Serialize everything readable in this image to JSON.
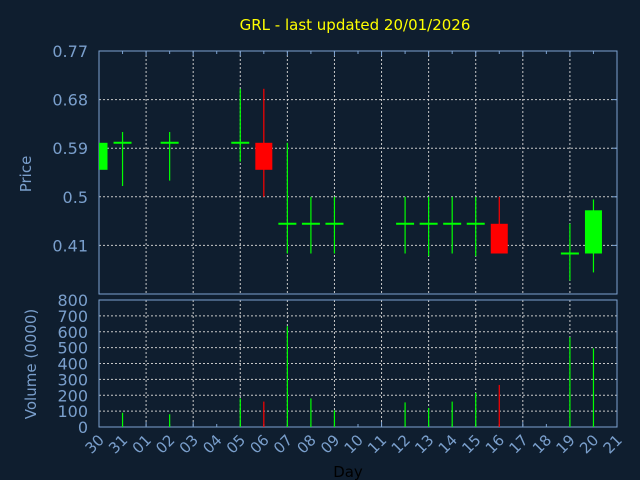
{
  "chart_data": [
    {
      "type": "candlestick",
      "title": "GRL - last updated 20/01/2026",
      "ylabel": "Price",
      "ylim": [
        0.32,
        0.77
      ],
      "yticks": [
        "0.77",
        "0.68",
        "0.59",
        "0.5",
        "0.41"
      ],
      "ytick_values": [
        0.77,
        0.68,
        0.59,
        0.5,
        0.41
      ],
      "grid": true,
      "candles": [
        {
          "day": "30",
          "open": 0.55,
          "high": 0.6,
          "low": 0.55,
          "close": 0.6
        },
        {
          "day": "31",
          "open": 0.6,
          "high": 0.62,
          "low": 0.52,
          "close": 0.6
        },
        {
          "day": "02",
          "open": 0.6,
          "high": 0.62,
          "low": 0.53,
          "close": 0.6
        },
        {
          "day": "05",
          "open": 0.6,
          "high": 0.7,
          "low": 0.565,
          "close": 0.6
        },
        {
          "day": "06",
          "open": 0.6,
          "high": 0.7,
          "low": 0.5,
          "close": 0.55
        },
        {
          "day": "07",
          "open": 0.45,
          "high": 0.6,
          "low": 0.395,
          "close": 0.45
        },
        {
          "day": "08",
          "open": 0.45,
          "high": 0.5,
          "low": 0.395,
          "close": 0.45
        },
        {
          "day": "09",
          "open": 0.45,
          "high": 0.5,
          "low": 0.395,
          "close": 0.45
        },
        {
          "day": "12",
          "open": 0.45,
          "high": 0.5,
          "low": 0.395,
          "close": 0.45
        },
        {
          "day": "13",
          "open": 0.45,
          "high": 0.5,
          "low": 0.39,
          "close": 0.45
        },
        {
          "day": "14",
          "open": 0.45,
          "high": 0.5,
          "low": 0.395,
          "close": 0.45
        },
        {
          "day": "15",
          "open": 0.45,
          "high": 0.5,
          "low": 0.39,
          "close": 0.45
        },
        {
          "day": "16",
          "open": 0.45,
          "high": 0.5,
          "low": 0.395,
          "close": 0.395
        },
        {
          "day": "19",
          "open": 0.395,
          "high": 0.45,
          "low": 0.345,
          "close": 0.395
        },
        {
          "day": "20",
          "open": 0.395,
          "high": 0.495,
          "low": 0.36,
          "close": 0.475
        }
      ]
    },
    {
      "type": "bar",
      "ylabel": "Volume (0000)",
      "xlabel": "Day",
      "ylim": [
        0,
        800
      ],
      "yticks": [
        "800",
        "700",
        "600",
        "500",
        "400",
        "300",
        "200",
        "100",
        "0"
      ],
      "ytick_values": [
        800,
        700,
        600,
        500,
        400,
        300,
        200,
        100,
        0
      ],
      "xticks": [
        "30",
        "31",
        "01",
        "02",
        "03",
        "04",
        "05",
        "06",
        "07",
        "08",
        "09",
        "10",
        "11",
        "12",
        "13",
        "14",
        "15",
        "16",
        "17",
        "18",
        "19",
        "20",
        "21"
      ],
      "grid": true,
      "bars": [
        {
          "day": "31",
          "value": 90,
          "direction": "up"
        },
        {
          "day": "02",
          "value": 80,
          "direction": "up"
        },
        {
          "day": "05",
          "value": 180,
          "direction": "up"
        },
        {
          "day": "06",
          "value": 160,
          "direction": "down"
        },
        {
          "day": "07",
          "value": 635,
          "direction": "up"
        },
        {
          "day": "08",
          "value": 180,
          "direction": "up"
        },
        {
          "day": "09",
          "value": 105,
          "direction": "up"
        },
        {
          "day": "12",
          "value": 155,
          "direction": "up"
        },
        {
          "day": "13",
          "value": 120,
          "direction": "up"
        },
        {
          "day": "14",
          "value": 160,
          "direction": "up"
        },
        {
          "day": "15",
          "value": 215,
          "direction": "up"
        },
        {
          "day": "16",
          "value": 265,
          "direction": "down"
        },
        {
          "day": "19",
          "value": 565,
          "direction": "up"
        },
        {
          "day": "20",
          "value": 495,
          "direction": "up"
        }
      ]
    }
  ],
  "colors": {
    "background": "#0f1e2f",
    "axis": "#7ea3d1",
    "label": "#7a9fcc",
    "title": "#ffff00",
    "grid": "#c8c8c8",
    "up": "#00ff00",
    "down": "#ff0000",
    "xlabel": "#000000"
  }
}
